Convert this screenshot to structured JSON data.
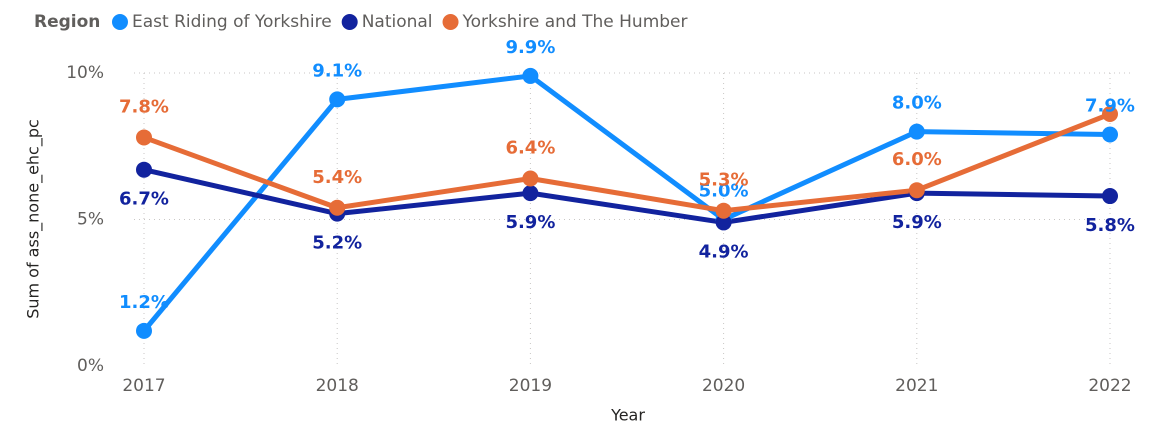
{
  "chart_data": {
    "type": "line",
    "legend_title": "Region",
    "x_label": "Year",
    "y_label": "Sum of ass_none_ehc_pc",
    "categories": [
      "2017",
      "2018",
      "2019",
      "2020",
      "2021",
      "2022"
    ],
    "series": [
      {
        "name": "East Riding of Yorkshire",
        "color": "#118dff",
        "values": [
          1.2,
          9.1,
          9.9,
          5.0,
          8.0,
          7.9
        ],
        "value_labels": [
          "1.2%",
          "9.1%",
          "9.9%",
          "5.0%",
          "8.0%",
          "7.9%"
        ]
      },
      {
        "name": "National",
        "color": "#12239e",
        "values": [
          6.7,
          5.2,
          5.9,
          4.9,
          5.9,
          5.8
        ],
        "value_labels": [
          "6.7%",
          "5.2%",
          "5.9%",
          "4.9%",
          "5.9%",
          "5.8%"
        ]
      },
      {
        "name": "Yorkshire and The Humber",
        "color": "#e66c37",
        "values": [
          7.8,
          5.4,
          6.4,
          5.3,
          6.0,
          8.6
        ],
        "value_labels": [
          "7.8%",
          "5.4%",
          "6.4%",
          "5.3%",
          "6.0%",
          null
        ]
      }
    ],
    "ylim": [
      0,
      10
    ],
    "yticks": [
      {
        "value": 0,
        "label": "0%"
      },
      {
        "value": 5,
        "label": "5%"
      },
      {
        "value": 10,
        "label": "10%"
      }
    ],
    "grid": true,
    "legend": "top-left"
  }
}
